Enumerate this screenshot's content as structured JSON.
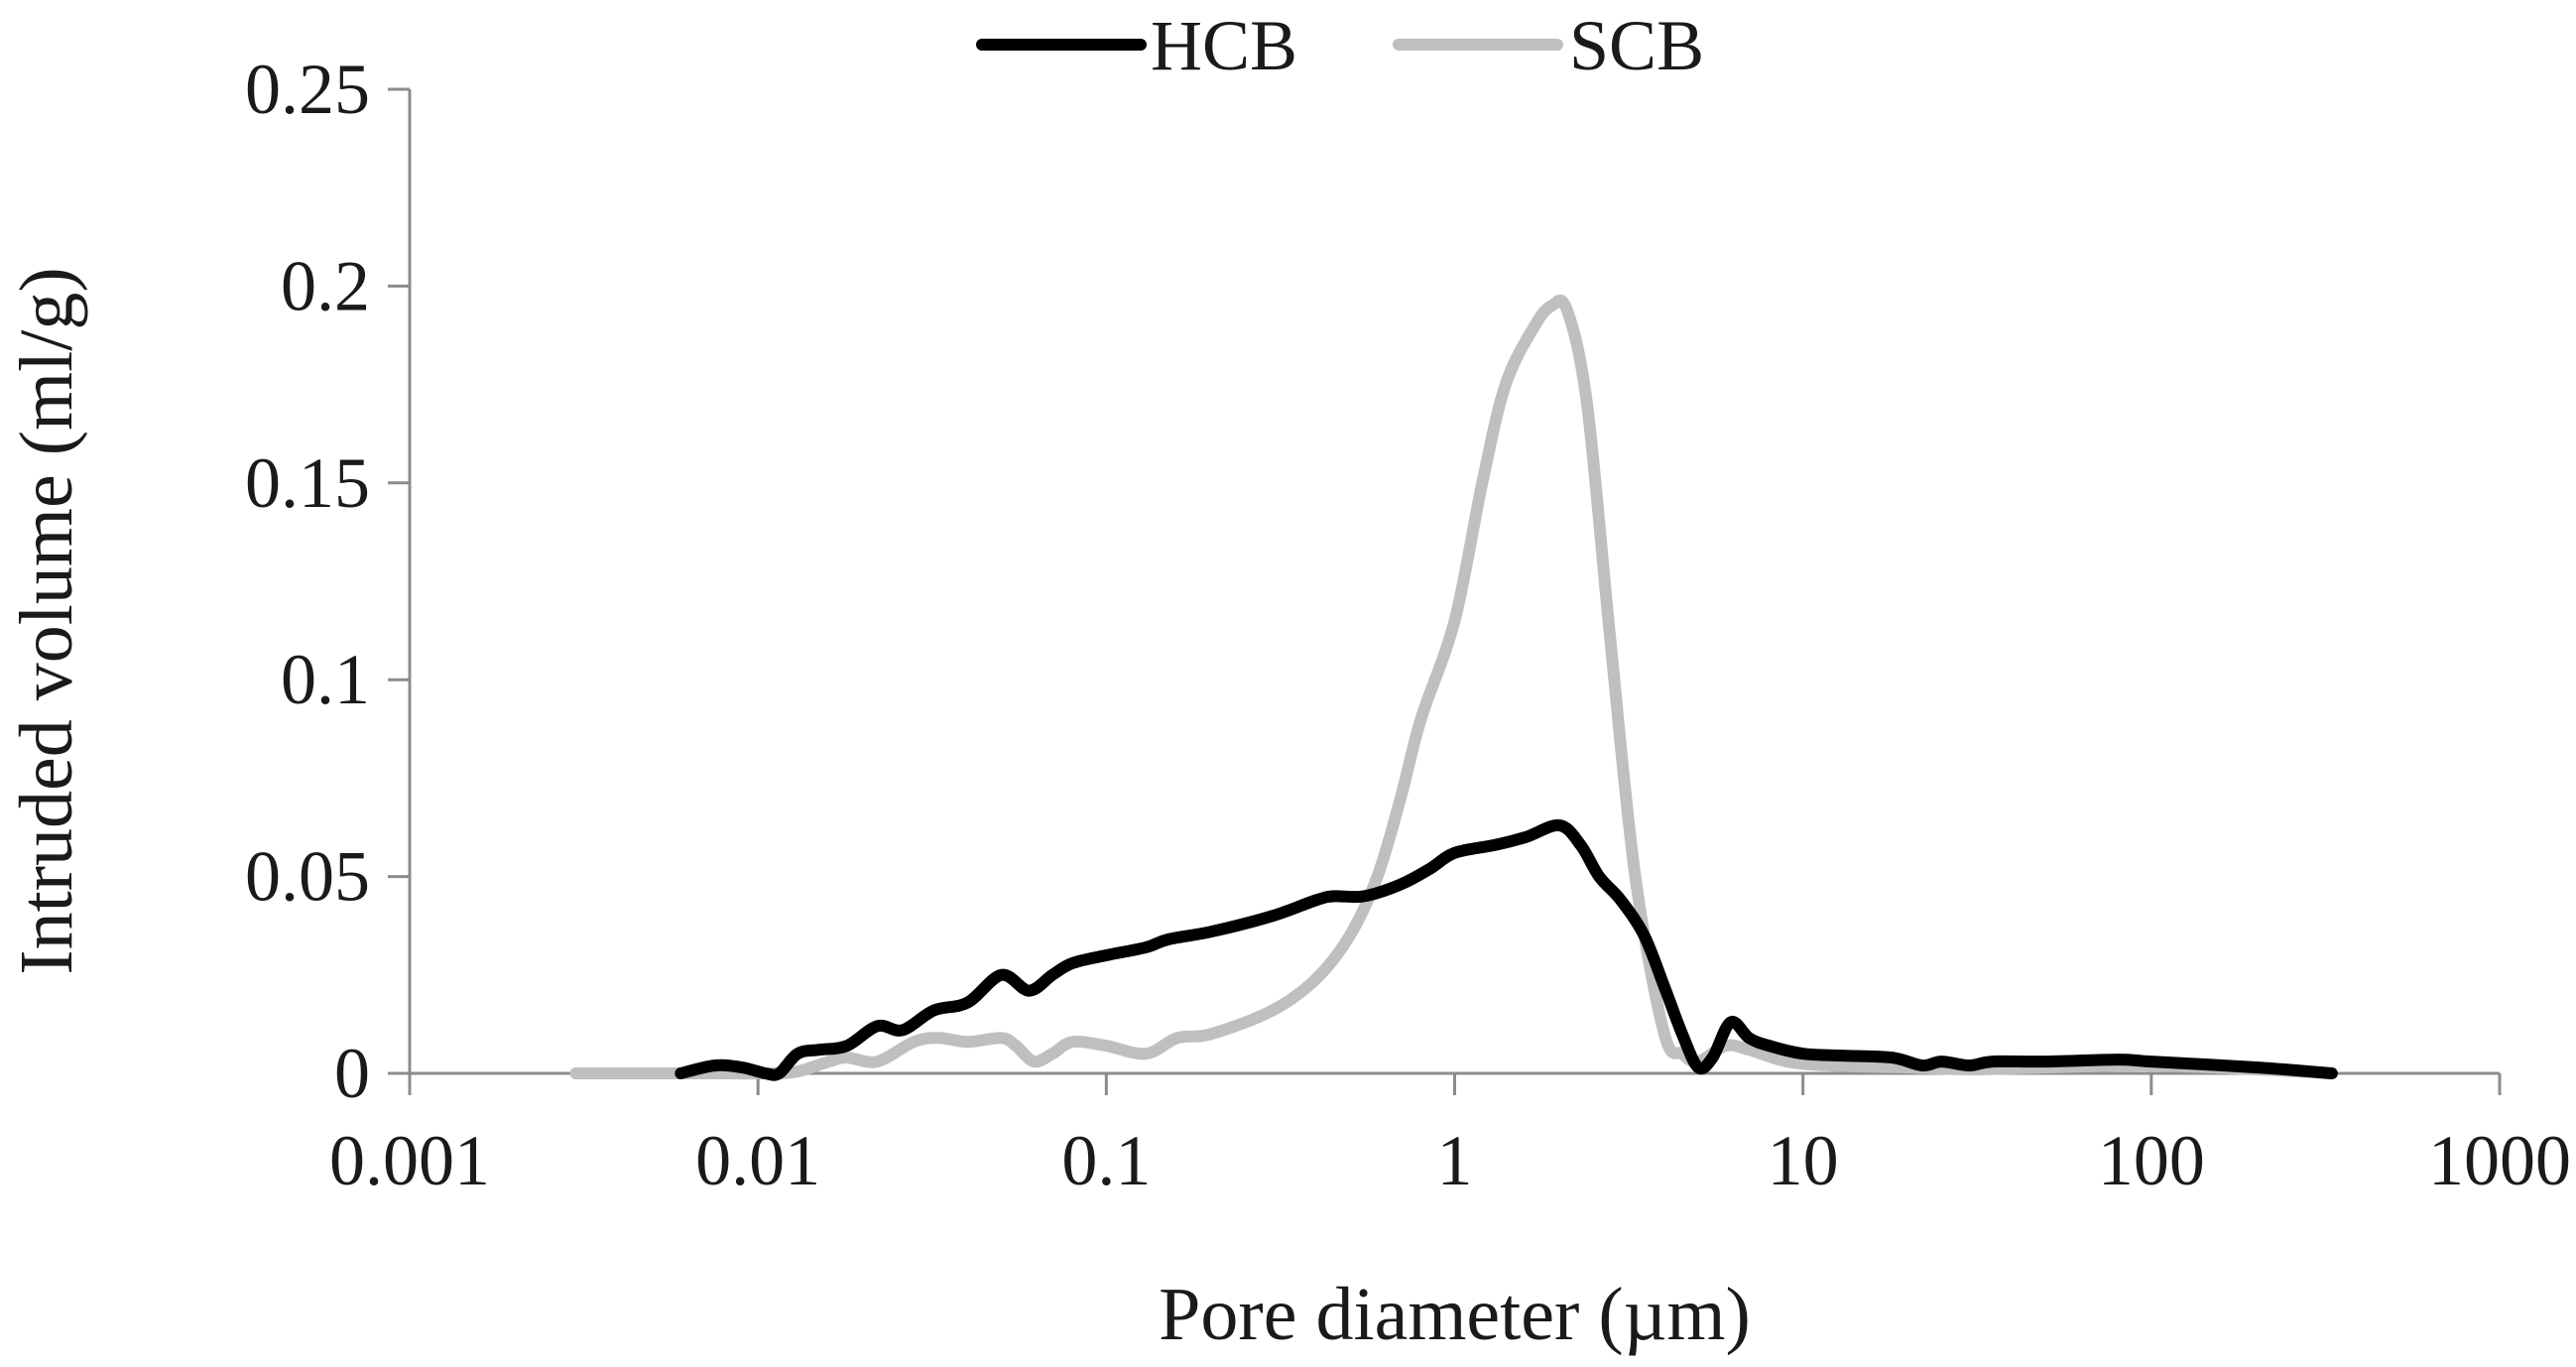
{
  "chart_data": {
    "type": "line",
    "title": "",
    "xlabel": "Pore diameter (µm)",
    "ylabel": "Intruded volume (ml/g)",
    "xscale": "log",
    "xlim": [
      0.001,
      1000
    ],
    "ylim": [
      0,
      0.25
    ],
    "x_tick_labels": [
      "0.001",
      "0.01",
      "0.1",
      "1",
      "10",
      "100",
      "1000"
    ],
    "y_tick_labels": [
      "0",
      "0.05",
      "0.1",
      "0.15",
      "0.2",
      "0.25"
    ],
    "grid": false,
    "legend_position": "top-center",
    "series": [
      {
        "name": "HCB",
        "color": "#000000",
        "points": [
          [
            0.006,
            0
          ],
          [
            0.0075,
            0.002
          ],
          [
            0.009,
            0.0015
          ],
          [
            0.0105,
            0
          ],
          [
            0.0115,
            0
          ],
          [
            0.013,
            0.005
          ],
          [
            0.015,
            0.006
          ],
          [
            0.018,
            0.007
          ],
          [
            0.022,
            0.012
          ],
          [
            0.026,
            0.011
          ],
          [
            0.032,
            0.016
          ],
          [
            0.04,
            0.018
          ],
          [
            0.05,
            0.025
          ],
          [
            0.06,
            0.021
          ],
          [
            0.07,
            0.025
          ],
          [
            0.08,
            0.028
          ],
          [
            0.1,
            0.03
          ],
          [
            0.13,
            0.032
          ],
          [
            0.15,
            0.034
          ],
          [
            0.2,
            0.036
          ],
          [
            0.3,
            0.04
          ],
          [
            0.4,
            0.044
          ],
          [
            0.45,
            0.045
          ],
          [
            0.55,
            0.045
          ],
          [
            0.7,
            0.048
          ],
          [
            0.85,
            0.052
          ],
          [
            1.0,
            0.056
          ],
          [
            1.3,
            0.058
          ],
          [
            1.6,
            0.06
          ],
          [
            2.0,
            0.063
          ],
          [
            2.3,
            0.058
          ],
          [
            2.6,
            0.05
          ],
          [
            3.0,
            0.044
          ],
          [
            3.5,
            0.035
          ],
          [
            4.0,
            0.022
          ],
          [
            4.5,
            0.01
          ],
          [
            5.0,
            0.0015
          ],
          [
            5.5,
            0.004
          ],
          [
            6.2,
            0.013
          ],
          [
            7.0,
            0.009
          ],
          [
            8.0,
            0.007
          ],
          [
            10,
            0.005
          ],
          [
            13,
            0.0045
          ],
          [
            18,
            0.004
          ],
          [
            22,
            0.002
          ],
          [
            25,
            0.003
          ],
          [
            30,
            0.002
          ],
          [
            35,
            0.003
          ],
          [
            50,
            0.003
          ],
          [
            80,
            0.0035
          ],
          [
            100,
            0.003
          ],
          [
            200,
            0.0015
          ],
          [
            330,
            0
          ]
        ]
      },
      {
        "name": "SCB",
        "color": "#bfbfbf",
        "points": [
          [
            0.003,
            0
          ],
          [
            0.005,
            0
          ],
          [
            0.008,
            0
          ],
          [
            0.011,
            0
          ],
          [
            0.013,
            0.0005
          ],
          [
            0.016,
            0.003
          ],
          [
            0.018,
            0.004
          ],
          [
            0.022,
            0.003
          ],
          [
            0.028,
            0.008
          ],
          [
            0.033,
            0.009
          ],
          [
            0.04,
            0.008
          ],
          [
            0.05,
            0.009
          ],
          [
            0.055,
            0.007
          ],
          [
            0.062,
            0.003
          ],
          [
            0.07,
            0.005
          ],
          [
            0.08,
            0.008
          ],
          [
            0.1,
            0.007
          ],
          [
            0.13,
            0.005
          ],
          [
            0.16,
            0.009
          ],
          [
            0.2,
            0.01
          ],
          [
            0.3,
            0.016
          ],
          [
            0.4,
            0.024
          ],
          [
            0.5,
            0.035
          ],
          [
            0.6,
            0.05
          ],
          [
            0.7,
            0.07
          ],
          [
            0.8,
            0.09
          ],
          [
            1.0,
            0.115
          ],
          [
            1.2,
            0.15
          ],
          [
            1.4,
            0.175
          ],
          [
            1.7,
            0.19
          ],
          [
            1.9,
            0.195
          ],
          [
            2.1,
            0.194
          ],
          [
            2.4,
            0.17
          ],
          [
            2.8,
            0.11
          ],
          [
            3.3,
            0.05
          ],
          [
            4.0,
            0.01
          ],
          [
            4.5,
            0.005
          ],
          [
            5.0,
            0.003
          ],
          [
            6.0,
            0.007
          ],
          [
            7.0,
            0.006
          ],
          [
            9.0,
            0.003
          ],
          [
            12,
            0.002
          ],
          [
            20,
            0.0015
          ],
          [
            30,
            0.001
          ],
          [
            50,
            0.0015
          ],
          [
            100,
            0.002
          ],
          [
            200,
            0.001
          ],
          [
            330,
            0
          ]
        ]
      }
    ]
  }
}
